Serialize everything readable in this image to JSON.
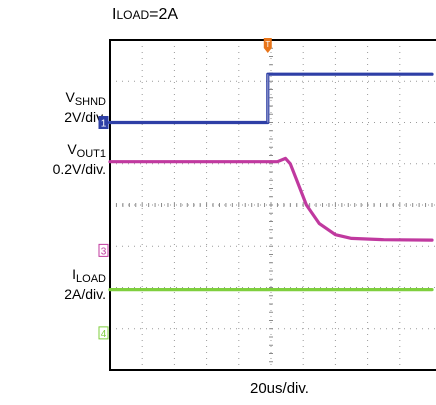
{
  "chart_data": {
    "type": "line",
    "title": {
      "prefix": "I",
      "small_caps": "LOAD",
      "suffix": "=2A"
    },
    "xlabel": "20us/div.",
    "x_divisions": 10,
    "y_divisions": 8,
    "grid": true,
    "trigger_marker": {
      "label": "T",
      "color": "#e8751a",
      "x_div": 4.9
    },
    "series": [
      {
        "name": "VSHND",
        "channel_marker": "1",
        "label": {
          "main": "V",
          "sub": "SHND",
          "scale": "2V/div."
        },
        "color": "#2e3fa6",
        "points_div": [
          [
            0,
            2.0
          ],
          [
            4.9,
            2.0
          ],
          [
            4.9,
            0.83
          ],
          [
            10,
            0.83
          ]
        ]
      },
      {
        "name": "VOUT1",
        "channel_marker": "3",
        "label": {
          "main": "V",
          "sub": "OUT1",
          "scale": "0.2V/div."
        },
        "color": "#c0399f",
        "points_div": [
          [
            0,
            2.95
          ],
          [
            5.2,
            2.95
          ],
          [
            5.45,
            2.87
          ],
          [
            5.6,
            3.0
          ],
          [
            5.8,
            3.4
          ],
          [
            6.1,
            4.0
          ],
          [
            6.5,
            4.45
          ],
          [
            7.0,
            4.72
          ],
          [
            7.5,
            4.81
          ],
          [
            8.5,
            4.84
          ],
          [
            10,
            4.85
          ]
        ]
      },
      {
        "name": "ILOAD",
        "channel_marker": "4",
        "label": {
          "main": "I",
          "sub": "LOAD",
          "scale": "2A/div."
        },
        "color": "#7fcf3e",
        "points_div": [
          [
            0,
            6.05
          ],
          [
            10,
            6.05
          ]
        ]
      }
    ]
  }
}
